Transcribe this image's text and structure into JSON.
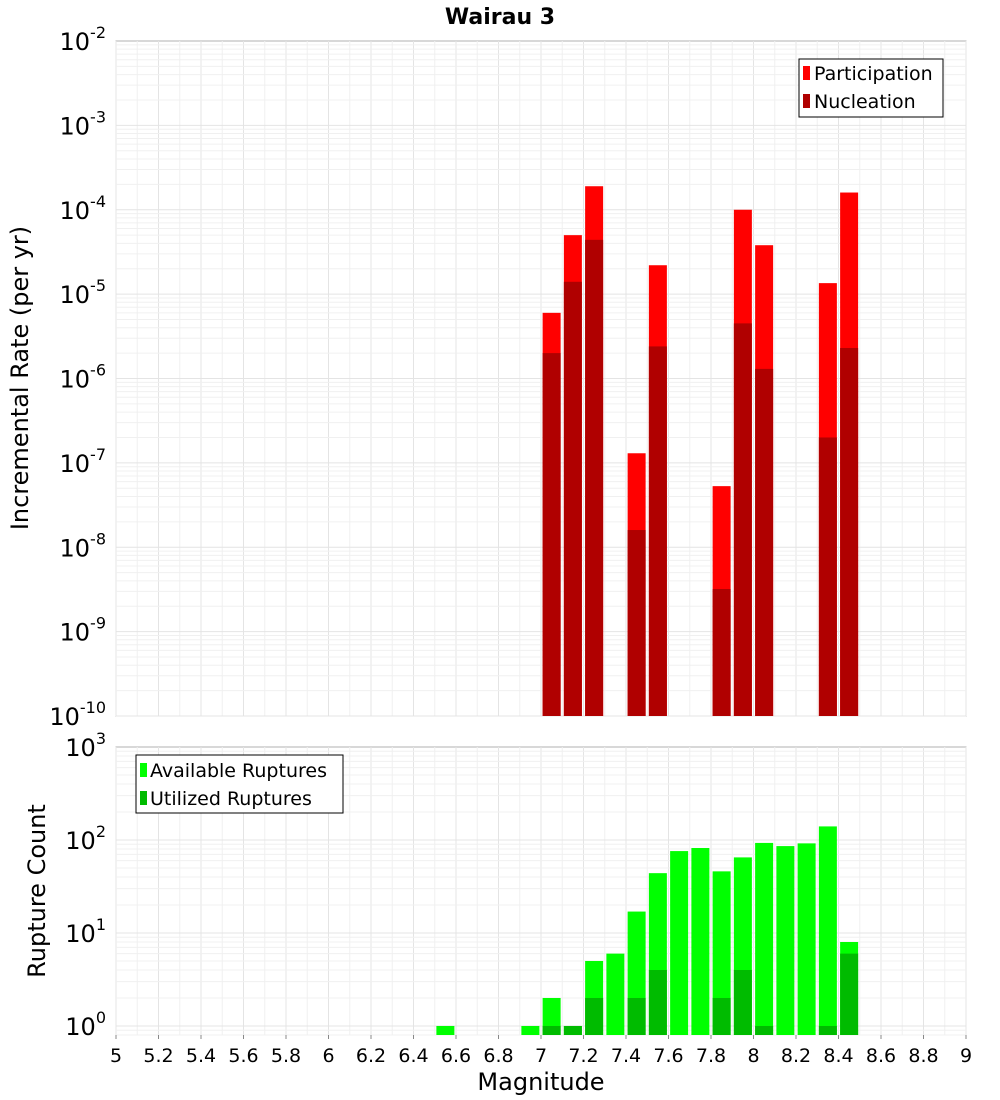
{
  "title": "Wairau 3",
  "chart_data": [
    {
      "type": "bar",
      "name": "rate-panel",
      "title": "Wairau 3",
      "xlabel": "",
      "ylabel": "Incremental Rate (per yr)",
      "xlim": [
        5,
        9
      ],
      "ylim": [
        1e-10,
        0.01
      ],
      "yscale": "log",
      "grid": true,
      "legend_position": "top-right",
      "y_tick_labels": [
        {
          "base": "10",
          "exp": "-2",
          "value": 0.01
        },
        {
          "base": "10",
          "exp": "-3",
          "value": 0.001
        },
        {
          "base": "10",
          "exp": "-4",
          "value": 0.0001
        },
        {
          "base": "10",
          "exp": "-5",
          "value": 1e-05
        },
        {
          "base": "10",
          "exp": "-6",
          "value": 1e-06
        },
        {
          "base": "10",
          "exp": "-7",
          "value": 1e-07
        },
        {
          "base": "10",
          "exp": "-8",
          "value": 1e-08
        },
        {
          "base": "10",
          "exp": "-9",
          "value": 1e-09
        },
        {
          "base": "10",
          "exp": "-10",
          "value": 1e-10
        }
      ],
      "series": [
        {
          "name": "Participation",
          "color": "#ff0000",
          "points": [
            {
              "x": 7.05,
              "y": 6e-06
            },
            {
              "x": 7.15,
              "y": 5e-05
            },
            {
              "x": 7.25,
              "y": 0.00019
            },
            {
              "x": 7.45,
              "y": 1.3e-07
            },
            {
              "x": 7.55,
              "y": 2.2e-05
            },
            {
              "x": 7.85,
              "y": 5.3e-08
            },
            {
              "x": 7.95,
              "y": 0.0001
            },
            {
              "x": 8.05,
              "y": 3.8e-05
            },
            {
              "x": 8.35,
              "y": 1.35e-05
            },
            {
              "x": 8.45,
              "y": 0.00016
            }
          ]
        },
        {
          "name": "Nucleation",
          "color": "#b00000",
          "points": [
            {
              "x": 7.05,
              "y": 2e-06
            },
            {
              "x": 7.15,
              "y": 1.4e-05
            },
            {
              "x": 7.25,
              "y": 4.4e-05
            },
            {
              "x": 7.45,
              "y": 1.6e-08
            },
            {
              "x": 7.55,
              "y": 2.4e-06
            },
            {
              "x": 7.85,
              "y": 3.2e-09
            },
            {
              "x": 7.95,
              "y": 4.5e-06
            },
            {
              "x": 8.05,
              "y": 1.3e-06
            },
            {
              "x": 8.35,
              "y": 2e-07
            },
            {
              "x": 8.45,
              "y": 2.3e-06
            }
          ]
        }
      ]
    },
    {
      "type": "bar",
      "name": "count-panel",
      "xlabel": "Magnitude",
      "ylabel": "Rupture Count",
      "xlim": [
        5,
        9
      ],
      "ylim": [
        0.8,
        1000
      ],
      "yscale": "log",
      "grid": true,
      "legend_position": "top-left",
      "y_tick_labels": [
        {
          "base": "10",
          "exp": "3",
          "value": 1000
        },
        {
          "base": "10",
          "exp": "2",
          "value": 100
        },
        {
          "base": "10",
          "exp": "1",
          "value": 10
        },
        {
          "base": "10",
          "exp": "0",
          "value": 1
        }
      ],
      "x_tick_labels": [
        "5",
        "5.2",
        "5.4",
        "5.6",
        "5.8",
        "6",
        "6.2",
        "6.4",
        "6.6",
        "6.8",
        "7",
        "7.2",
        "7.4",
        "7.6",
        "7.8",
        "8",
        "8.2",
        "8.4",
        "8.6",
        "8.8",
        "9"
      ],
      "series": [
        {
          "name": "Available Ruptures",
          "color": "#00ff00",
          "points": [
            {
              "x": 6.55,
              "y": 1
            },
            {
              "x": 6.95,
              "y": 1
            },
            {
              "x": 7.05,
              "y": 2
            },
            {
              "x": 7.15,
              "y": 1
            },
            {
              "x": 7.25,
              "y": 5
            },
            {
              "x": 7.35,
              "y": 6
            },
            {
              "x": 7.45,
              "y": 17
            },
            {
              "x": 7.55,
              "y": 44
            },
            {
              "x": 7.65,
              "y": 76
            },
            {
              "x": 7.75,
              "y": 82
            },
            {
              "x": 7.85,
              "y": 46
            },
            {
              "x": 7.95,
              "y": 65
            },
            {
              "x": 8.05,
              "y": 93
            },
            {
              "x": 8.15,
              "y": 86
            },
            {
              "x": 8.25,
              "y": 92
            },
            {
              "x": 8.35,
              "y": 140
            },
            {
              "x": 8.45,
              "y": 8
            }
          ]
        },
        {
          "name": "Utilized Ruptures",
          "color": "#00bb00",
          "points": [
            {
              "x": 7.05,
              "y": 1
            },
            {
              "x": 7.15,
              "y": 1
            },
            {
              "x": 7.25,
              "y": 2
            },
            {
              "x": 7.45,
              "y": 2
            },
            {
              "x": 7.55,
              "y": 4
            },
            {
              "x": 7.85,
              "y": 2
            },
            {
              "x": 7.95,
              "y": 4
            },
            {
              "x": 8.05,
              "y": 1
            },
            {
              "x": 8.35,
              "y": 1
            },
            {
              "x": 8.45,
              "y": 6
            }
          ]
        }
      ]
    }
  ]
}
